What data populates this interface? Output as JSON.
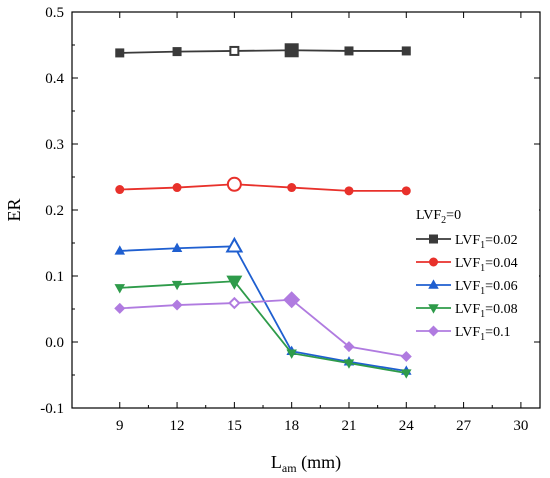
{
  "chart_data": {
    "type": "line",
    "title": "",
    "xlabel_main": "L",
    "xlabel_sub": "am",
    "xlabel_unit": " (mm)",
    "ylabel": "ER",
    "xlim": [
      6.5,
      31
    ],
    "ylim": [
      -0.1,
      0.5
    ],
    "x_ticks": [
      9,
      12,
      15,
      18,
      21,
      24,
      27,
      30
    ],
    "y_ticks": [
      -0.1,
      0.0,
      0.1,
      0.2,
      0.3,
      0.4,
      0.5
    ],
    "y_tick_labels": [
      "-0.1",
      "0.0",
      "0.1",
      "0.2",
      "0.3",
      "0.4",
      "0.5"
    ],
    "grid": false,
    "legend_position": "right",
    "legend_title_main": "LVF",
    "legend_title_sub": "2",
    "legend_title_rest": "=0",
    "x": [
      9,
      12,
      15,
      18,
      21,
      24
    ],
    "series": [
      {
        "name_main": "LVF",
        "name_sub": "1",
        "name_rest": "=0.02",
        "color": "#3a3a3a",
        "marker": "square",
        "values": [
          0.438,
          0.44,
          0.441,
          0.442,
          0.441,
          0.441
        ],
        "highlight_index": 3,
        "hollow_index": 2
      },
      {
        "name_main": "LVF",
        "name_sub": "1",
        "name_rest": "=0.04",
        "color": "#e8312b",
        "marker": "circle",
        "values": [
          0.231,
          0.234,
          0.239,
          0.234,
          0.229,
          0.229
        ],
        "highlight_index": 2,
        "hollow_index": 2
      },
      {
        "name_main": "LVF",
        "name_sub": "1",
        "name_rest": "=0.06",
        "color": "#1f5fd0",
        "marker": "triangle-up",
        "values": [
          0.138,
          0.142,
          0.145,
          -0.014,
          -0.03,
          -0.044
        ],
        "highlight_index": 2,
        "hollow_index": 2
      },
      {
        "name_main": "LVF",
        "name_sub": "1",
        "name_rest": "=0.08",
        "color": "#2e9b4a",
        "marker": "triangle-down",
        "values": [
          0.082,
          0.087,
          0.092,
          -0.017,
          -0.032,
          -0.047
        ],
        "highlight_index": 2,
        "hollow_index": -1
      },
      {
        "name_main": "LVF",
        "name_sub": "1",
        "name_rest": "=0.1",
        "color": "#b07be0",
        "marker": "diamond",
        "values": [
          0.051,
          0.056,
          0.059,
          0.064,
          -0.007,
          -0.022
        ],
        "highlight_index": 3,
        "hollow_index": 2
      }
    ]
  }
}
